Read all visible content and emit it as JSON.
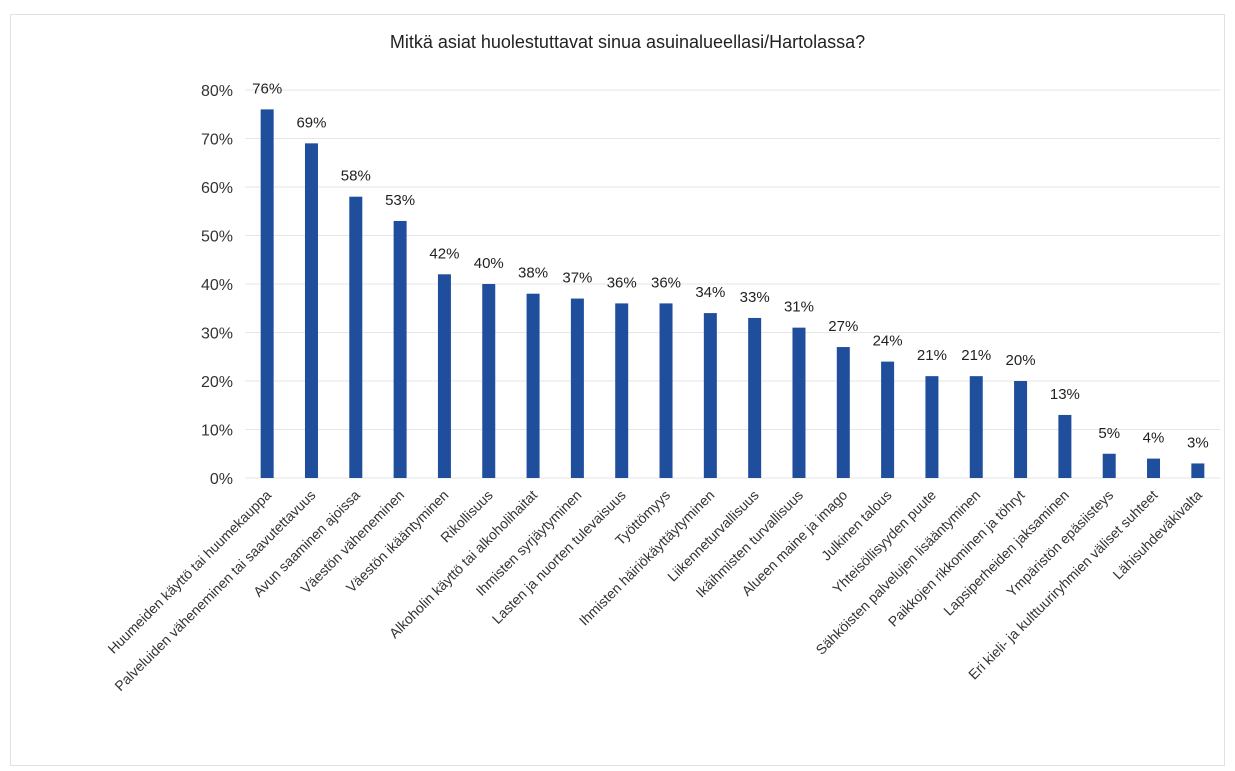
{
  "chart_data": {
    "type": "bar",
    "title": "Mitkä asiat huolestuttavat sinua asuinalueellasi/Hartolassa?",
    "xlabel": "",
    "ylabel": "",
    "ylim": [
      0,
      80
    ],
    "y_ticks": [
      "0%",
      "10%",
      "20%",
      "30%",
      "40%",
      "50%",
      "60%",
      "70%",
      "80%"
    ],
    "grid": true,
    "legend": "none",
    "bar_color": "#1f4e9c",
    "categories": [
      "Huumeiden käyttö tai huumekauppa",
      "Palveluiden väheneminen tai saavutettavuus",
      "Avun saaminen ajoissa",
      "Väestön väheneminen",
      "Väestön ikääntyminen",
      "Rikollisuus",
      "Alkoholin käyttö tai alkoholihaitat",
      "Ihmisten syrjäytyminen",
      "Lasten ja nuorten tulevaisuus",
      "Työttömyys",
      "Ihmisten häiriökäyttäytyminen",
      "Liikenneturvallisuus",
      "Ikäihmisten turvallisuus",
      "Alueen maine ja imago",
      "Julkinen talous",
      "Yhteisöllisyyden puute",
      "Sähköisten palvelujen lisääntyminen",
      "Paikkojen rikkominen ja töhryt",
      "Lapsiperheiden jaksaminen",
      "Ympäristön epäsiisteys",
      "Eri kieli- ja kulttuuriryhmien väliset suhteet",
      "Lähisuhdeväkivalta"
    ],
    "values": [
      76,
      69,
      58,
      53,
      42,
      40,
      38,
      37,
      36,
      36,
      34,
      33,
      31,
      27,
      24,
      21,
      21,
      20,
      13,
      5,
      4,
      3
    ],
    "value_labels": [
      "76%",
      "69%",
      "58%",
      "53%",
      "42%",
      "40%",
      "38%",
      "37%",
      "36%",
      "36%",
      "34%",
      "33%",
      "31%",
      "27%",
      "24%",
      "21%",
      "21%",
      "20%",
      "13%",
      "5%",
      "4%",
      "3%"
    ]
  }
}
